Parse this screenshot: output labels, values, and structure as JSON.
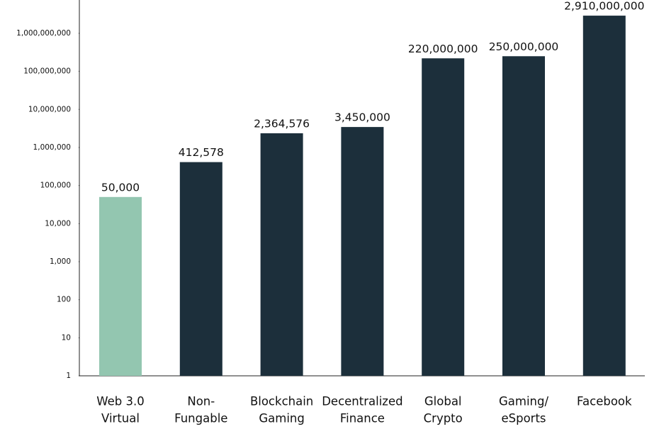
{
  "chart_data": {
    "type": "bar",
    "categories": [
      [
        "Web 3.0",
        "Virtual"
      ],
      [
        "Non-",
        "Fungable"
      ],
      [
        "Blockchain",
        "Gaming"
      ],
      [
        "Decentralized",
        "Finance"
      ],
      [
        "Global",
        "Crypto"
      ],
      [
        "Gaming/",
        "eSports"
      ],
      [
        "Facebook"
      ]
    ],
    "values": [
      50000,
      412578,
      2364576,
      3450000,
      220000000,
      250000000,
      2910000000
    ],
    "value_labels": [
      "50,000",
      "412,578",
      "2,364,576",
      "3,450,000",
      "220,000,000",
      "250,000,000",
      "2,910,000,000"
    ],
    "colors": [
      "#93c6b0",
      "#1c2f3b",
      "#1c2f3b",
      "#1c2f3b",
      "#1c2f3b",
      "#1c2f3b",
      "#1c2f3b"
    ],
    "log_scale": true,
    "ylim": [
      1,
      7500000000
    ],
    "yticks": [
      1,
      10,
      100,
      {
        "value": 1000,
        "label": "1,000"
      },
      {
        "value": 10000,
        "label": "10,000"
      },
      {
        "value": 100000,
        "label": "100,000"
      },
      {
        "value": 1000000,
        "label": "1,000,000"
      },
      {
        "value": 10000000,
        "label": "10,000,000"
      },
      {
        "value": 100000000,
        "label": "100,000,000"
      },
      {
        "value": 1000000000,
        "label": "1,000,000,000"
      }
    ],
    "grid": false
  }
}
